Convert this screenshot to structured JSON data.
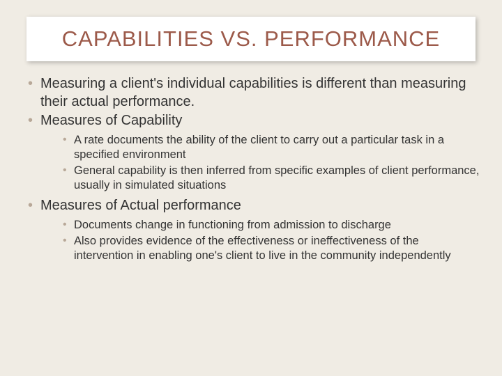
{
  "colors": {
    "background": "#f0ece4",
    "title_color": "#9c5a4a",
    "title_box_bg": "#ffffff",
    "bullet_color": "#b8a898",
    "text_color": "#333333"
  },
  "typography": {
    "title_fontsize": 31,
    "level1_fontsize": 20,
    "level2_fontsize": 16.5,
    "font_family": "Arial"
  },
  "title": "CAPABILITIES VS. PERFORMANCE",
  "bullets": [
    {
      "text": "Measuring a client's individual capabilities is different than measuring their actual performance.",
      "sub": []
    },
    {
      "text": "Measures of Capability",
      "sub": [
        "A rate documents the ability of the client to carry out a particular task in a specified environment",
        "General capability is then inferred from specific examples of client performance, usually in simulated situations"
      ]
    },
    {
      "text": "Measures of Actual performance",
      "sub": [
        "Documents change in functioning from admission to discharge",
        "Also provides evidence of the effectiveness or ineffectiveness of the intervention in enabling one's client to live in the community independently"
      ]
    }
  ]
}
